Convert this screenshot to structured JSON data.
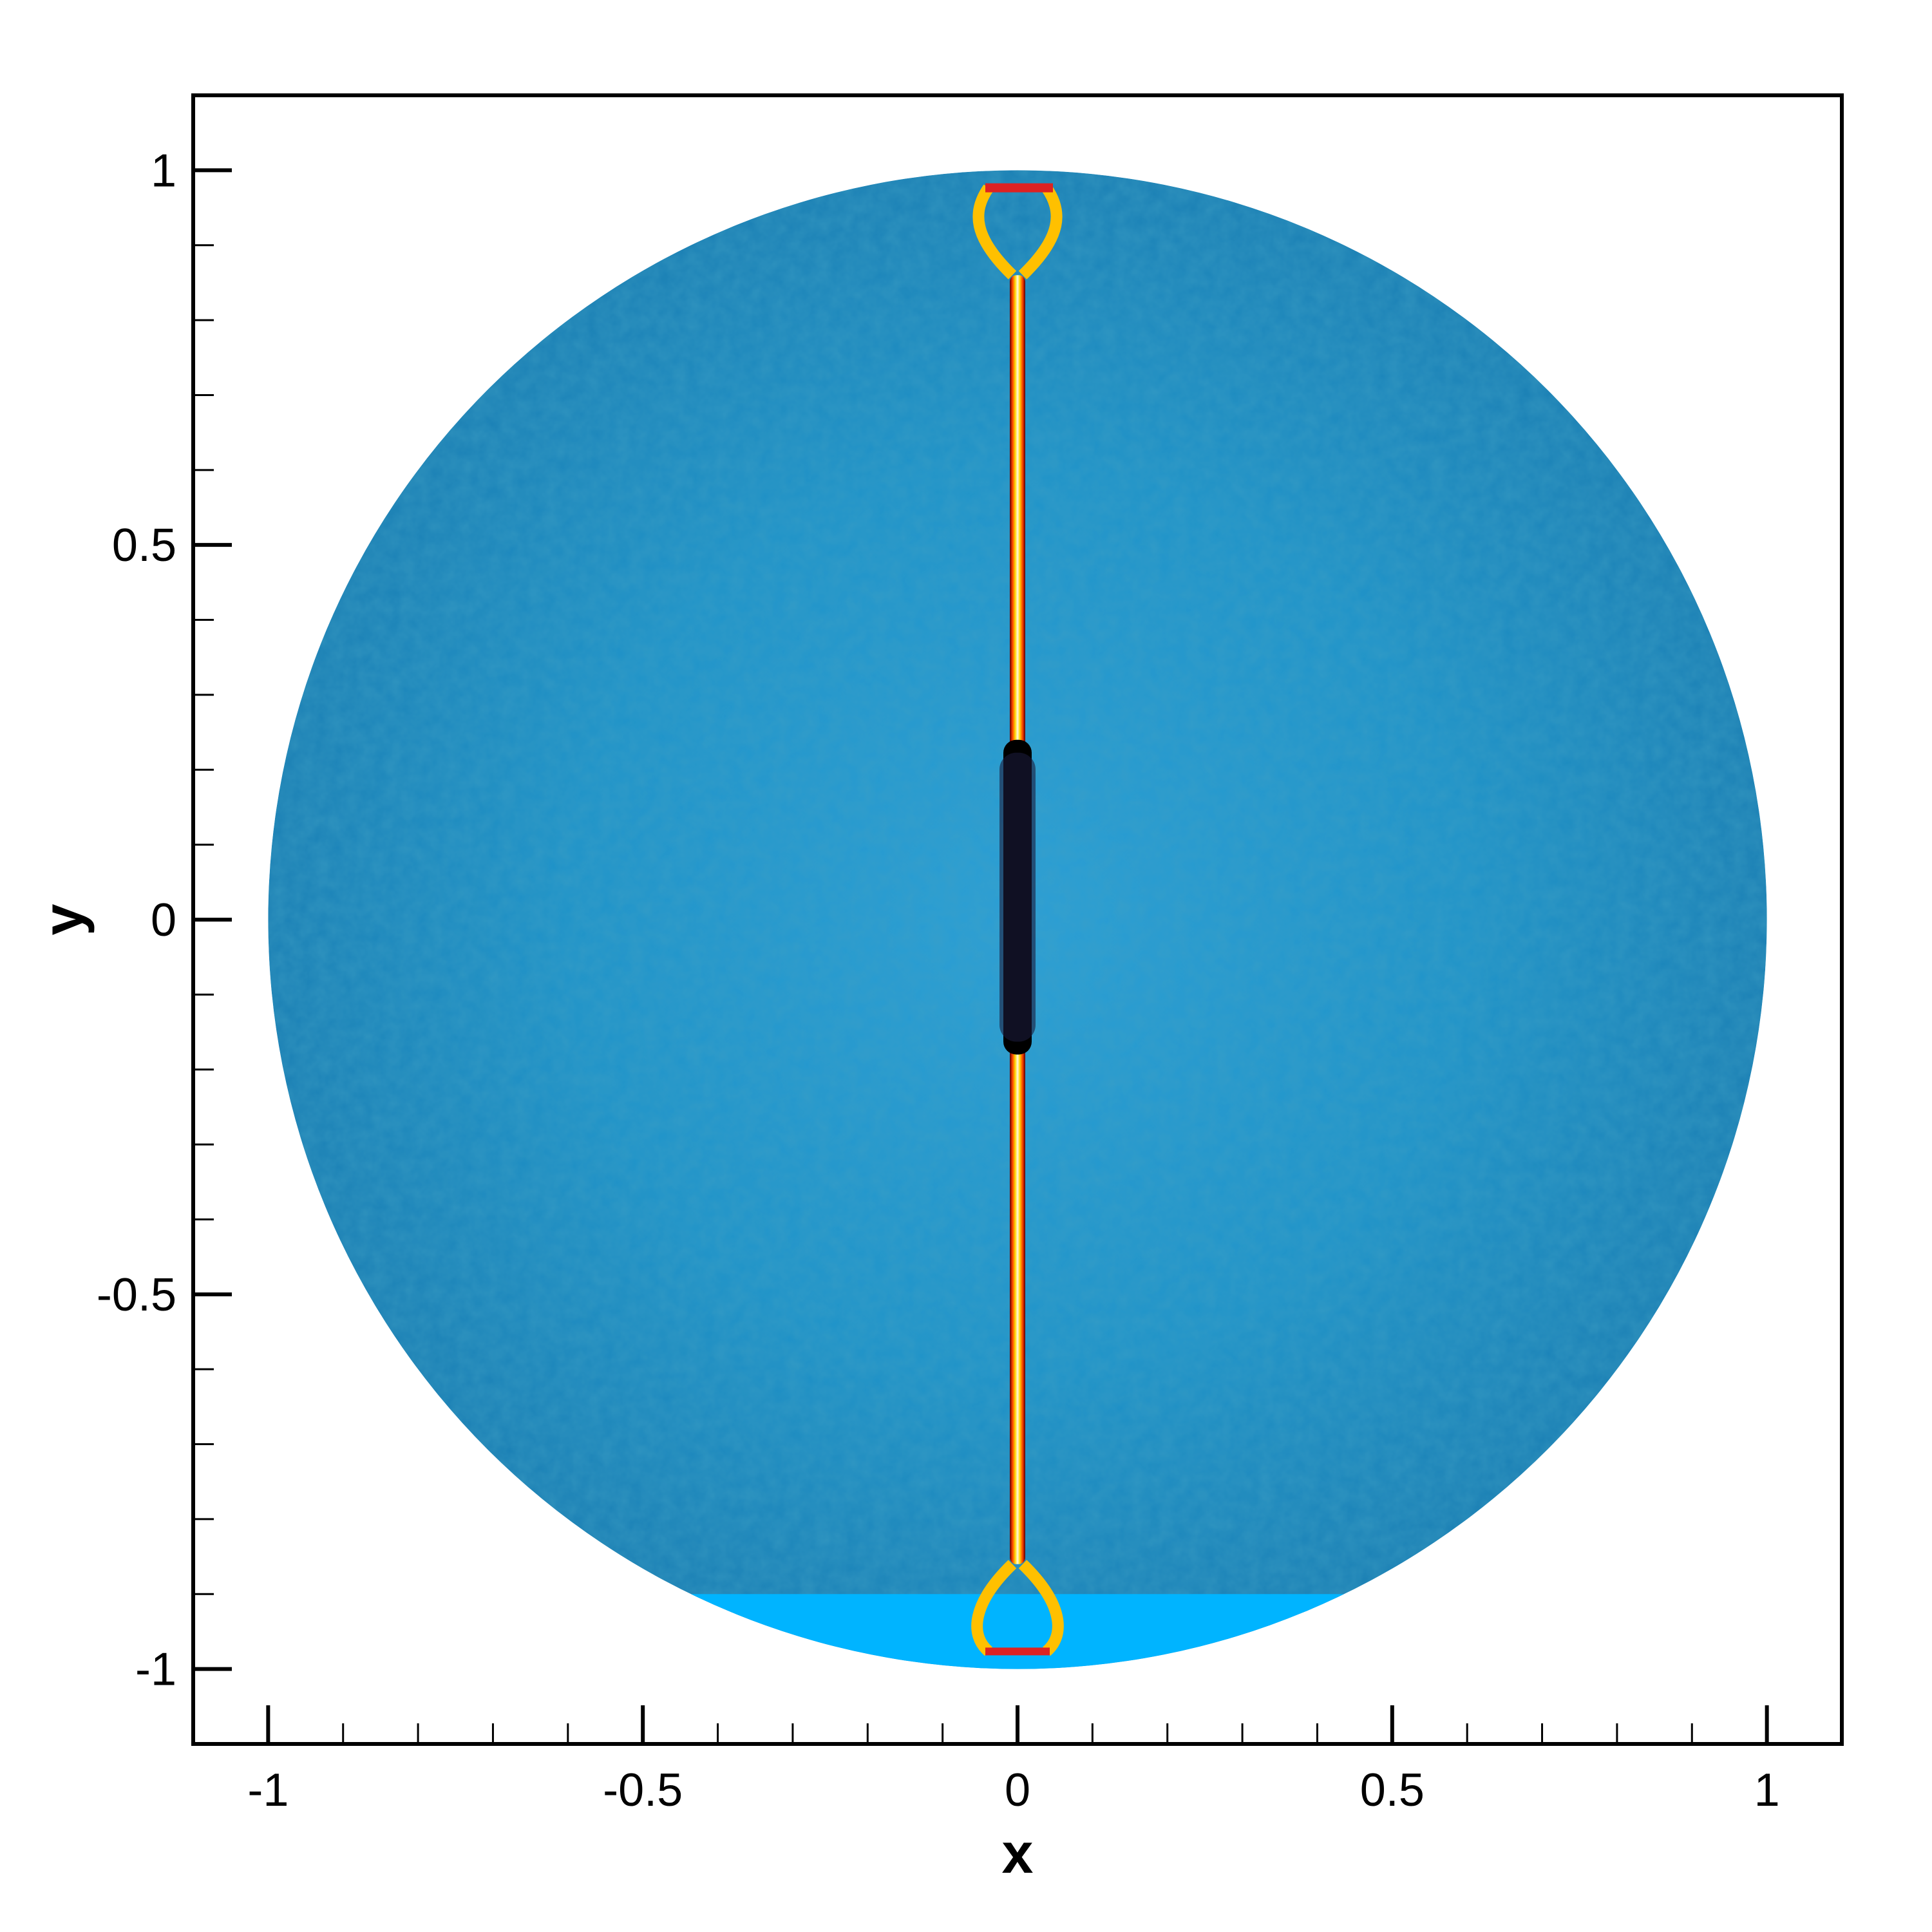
{
  "chart_data": {
    "type": "scatter",
    "title": "",
    "xlabel": "x",
    "ylabel": "y",
    "xlim": [
      -1.1,
      1.1
    ],
    "ylim": [
      -1.1,
      1.1
    ],
    "x_major_ticks": [
      -1,
      -0.5,
      0,
      0.5,
      1
    ],
    "x_tick_labels": [
      "-1",
      "-0.5",
      "0",
      "0.5",
      "1"
    ],
    "y_major_ticks": [
      -1,
      -0.5,
      0,
      0.5,
      1
    ],
    "y_tick_labels": [
      "-1",
      "-0.5",
      "0",
      "0.5",
      "1"
    ],
    "minor_tick_step": 0.1,
    "grid": false,
    "legend": "none",
    "background_image": {
      "shape": "disk",
      "center": [
        0,
        0
      ],
      "radius": 1,
      "color": "#1aa7df",
      "shadow_color": "#0e6f9a",
      "bottom_band_y": -0.9,
      "bottom_band_color": "#00b4ff"
    },
    "crack": {
      "x": 0,
      "y_range": [
        -0.98,
        0.98
      ],
      "dark_core_y_range": [
        -0.18,
        0.24
      ],
      "colors": [
        "#000000",
        "#8b0000",
        "#ff4500",
        "#ffd700",
        "#ffffff"
      ]
    }
  }
}
